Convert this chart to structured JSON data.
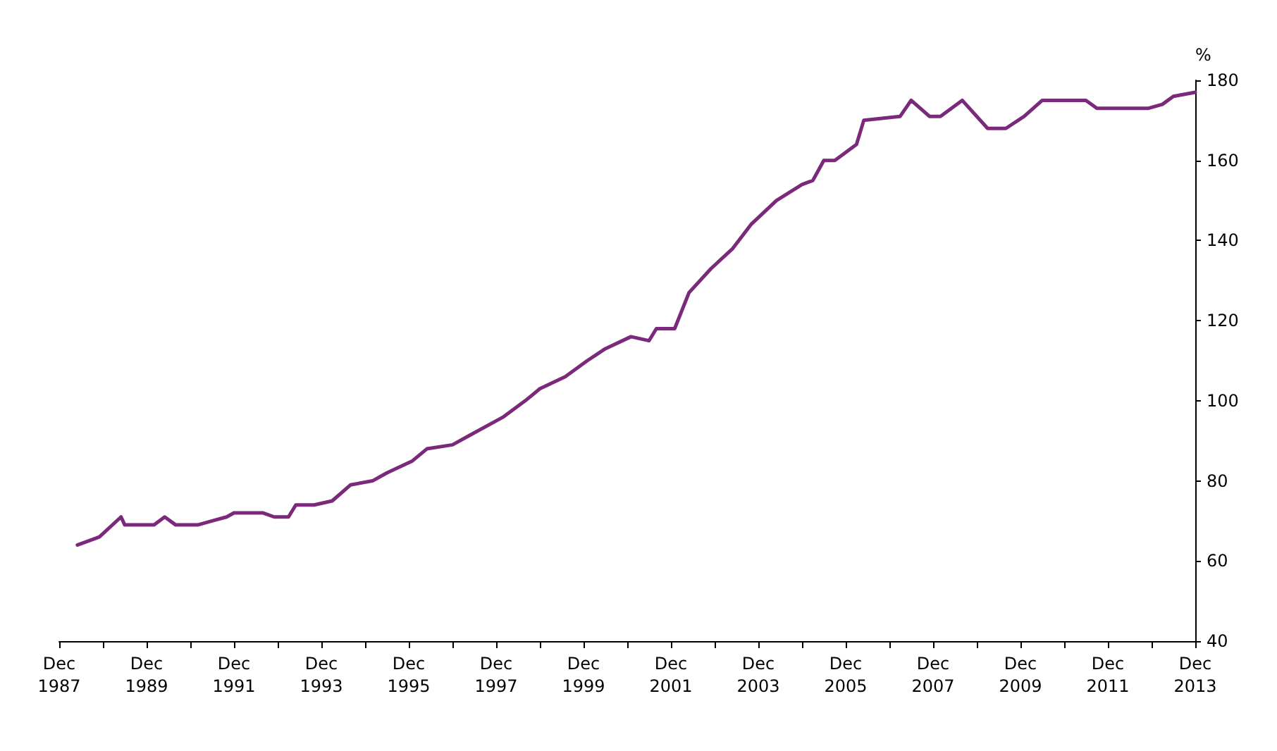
{
  "chart_data": {
    "type": "line",
    "ylabel": "%",
    "x": [
      "1988-05",
      "1988-11",
      "1989-05",
      "1989-06",
      "1990-02",
      "1990-05",
      "1990-08",
      "1991-02",
      "1991-06",
      "1991-10",
      "1991-12",
      "1992-08",
      "1992-11",
      "1993-03",
      "1993-05",
      "1993-10",
      "1994-03",
      "1994-08",
      "1995-02",
      "1995-06",
      "1996-01",
      "1996-05",
      "1996-12",
      "1997-04",
      "1998-02",
      "1998-08",
      "1998-12",
      "1999-07",
      "2000-01",
      "2000-06",
      "2001-01",
      "2001-06",
      "2001-08",
      "2002-01",
      "2002-05",
      "2002-11",
      "2003-05",
      "2003-10",
      "2004-05",
      "2004-12",
      "2005-03",
      "2005-06",
      "2005-09",
      "2006-03",
      "2006-05",
      "2007-03",
      "2007-06",
      "2007-11",
      "2008-02",
      "2008-08",
      "2009-03",
      "2009-08",
      "2010-01",
      "2010-06",
      "2010-11",
      "2011-06",
      "2011-09",
      "2012-11",
      "2013-03",
      "2013-06",
      "2013-12"
    ],
    "series": [
      {
        "color": "#7b2a7b",
        "values": [
          64,
          66,
          71,
          69,
          69,
          71,
          69,
          69,
          70,
          71,
          72,
          72,
          71,
          71,
          74,
          74,
          75,
          79,
          80,
          82,
          85,
          88,
          89,
          91,
          96,
          100,
          103,
          106,
          110,
          113,
          116,
          115,
          118,
          118,
          127,
          133,
          138,
          144,
          150,
          154,
          155,
          160,
          160,
          164,
          170,
          171,
          175,
          171,
          171,
          175,
          168,
          168,
          171,
          175,
          175,
          175,
          173,
          173,
          174,
          176,
          177
        ]
      }
    ],
    "xlim": [
      "1987-12",
      "2013-12"
    ],
    "xticks": [
      {
        "value": "1987-12",
        "label": "Dec\n1987"
      },
      {
        "value": "1988-12",
        "label": null
      },
      {
        "value": "1989-12",
        "label": "Dec\n1989"
      },
      {
        "value": "1990-12",
        "label": null
      },
      {
        "value": "1991-12",
        "label": "Dec\n1991"
      },
      {
        "value": "1992-12",
        "label": null
      },
      {
        "value": "1993-12",
        "label": "Dec\n1993"
      },
      {
        "value": "1994-12",
        "label": null
      },
      {
        "value": "1995-12",
        "label": "Dec\n1995"
      },
      {
        "value": "1996-12",
        "label": null
      },
      {
        "value": "1997-12",
        "label": "Dec\n1997"
      },
      {
        "value": "1998-12",
        "label": null
      },
      {
        "value": "1999-12",
        "label": "Dec\n1999"
      },
      {
        "value": "2000-12",
        "label": null
      },
      {
        "value": "2001-12",
        "label": "Dec\n2001"
      },
      {
        "value": "2002-12",
        "label": null
      },
      {
        "value": "2003-12",
        "label": "Dec\n2003"
      },
      {
        "value": "2004-12",
        "label": null
      },
      {
        "value": "2005-12",
        "label": "Dec\n2005"
      },
      {
        "value": "2006-12",
        "label": null
      },
      {
        "value": "2007-12",
        "label": "Dec\n2007"
      },
      {
        "value": "2008-12",
        "label": null
      },
      {
        "value": "2009-12",
        "label": "Dec\n2009"
      },
      {
        "value": "2010-12",
        "label": null
      },
      {
        "value": "2011-12",
        "label": "Dec\n2011"
      },
      {
        "value": "2012-12",
        "label": null
      },
      {
        "value": "2013-12",
        "label": "Dec\n2013"
      }
    ],
    "ylim": [
      40,
      180
    ],
    "yticks": [
      40,
      60,
      80,
      100,
      120,
      140,
      160,
      180
    ],
    "grid": false,
    "marker": "none",
    "line_style": "solid"
  }
}
